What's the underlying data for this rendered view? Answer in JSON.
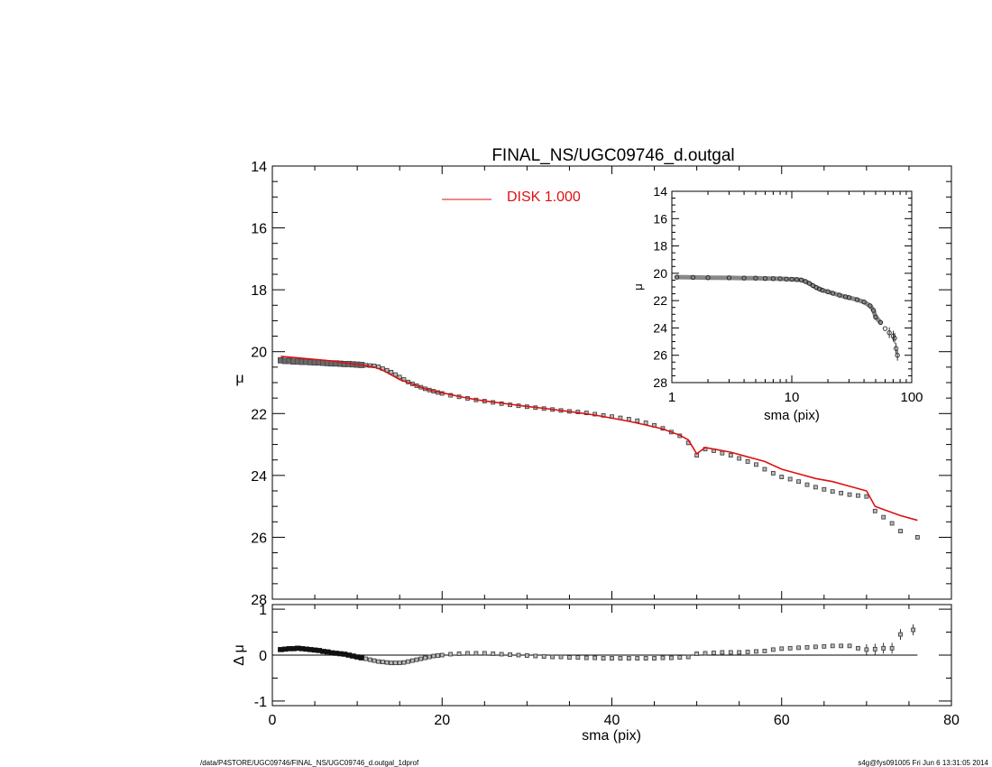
{
  "title": "FINAL_NS/UGC09746_d.outgal",
  "footer": {
    "left": "/data/P4STORE/UGC09746/FINAL_NS/UGC09746_d.outgal_1dprof",
    "right": "s4g@fys091005  Fri Jun  6 13:31:05 2014"
  },
  "colors": {
    "model": "#dd1111",
    "data": "#555555",
    "axis": "#000000"
  },
  "chart_data": [
    {
      "type": "scatter",
      "panel": "main",
      "title": "FINAL_NS/UGC09746_d.outgal",
      "xlabel": "",
      "ylabel": "μ",
      "xlim": [
        0,
        80
      ],
      "ylim": [
        28,
        14
      ],
      "y_inverted": true,
      "xticks": [
        "0",
        "20",
        "40",
        "60",
        "80"
      ],
      "yticks": [
        "14",
        "16",
        "18",
        "20",
        "22",
        "24",
        "26",
        "28"
      ],
      "legend": {
        "placement": "top-center",
        "entries": [
          {
            "label": "DISK  1.000",
            "color": "#dd1111"
          }
        ]
      },
      "series": [
        {
          "name": "DISK  1.000",
          "kind": "line",
          "color": "#dd1111",
          "x": [
            1,
            3,
            5,
            7,
            9,
            11,
            12,
            13,
            14,
            15,
            16,
            17,
            18,
            19,
            20,
            22,
            24,
            26,
            28,
            30,
            32,
            34,
            36,
            38,
            40,
            42,
            44,
            46,
            48,
            49,
            50,
            51,
            52,
            54,
            56,
            58,
            60,
            62,
            64,
            66,
            68,
            70,
            71,
            72,
            74,
            76
          ],
          "y": [
            20.15,
            20.2,
            20.25,
            20.3,
            20.38,
            20.45,
            20.5,
            20.6,
            20.75,
            20.9,
            21.0,
            21.1,
            21.2,
            21.27,
            21.33,
            21.45,
            21.55,
            21.63,
            21.7,
            21.77,
            21.83,
            21.9,
            21.97,
            22.05,
            22.15,
            22.25,
            22.37,
            22.5,
            22.7,
            22.85,
            23.3,
            23.1,
            23.15,
            23.25,
            23.4,
            23.55,
            23.8,
            23.95,
            24.1,
            24.2,
            24.35,
            24.5,
            25.0,
            25.1,
            25.3,
            25.45
          ]
        },
        {
          "name": "",
          "kind": "points",
          "color": "#555555",
          "x": [
            1,
            1.5,
            2,
            2.5,
            3,
            3.5,
            4,
            4.5,
            5,
            5.5,
            6,
            6.5,
            7,
            7.5,
            8,
            8.5,
            9,
            9.5,
            10,
            10.5,
            11,
            11.5,
            12,
            12.5,
            13,
            13.5,
            14,
            14.5,
            15,
            15.5,
            16,
            16.5,
            17,
            17.5,
            18,
            18.5,
            19,
            19.5,
            20,
            21,
            22,
            23,
            24,
            25,
            26,
            27,
            28,
            29,
            30,
            31,
            32,
            33,
            34,
            35,
            36,
            37,
            38,
            39,
            40,
            41,
            42,
            43,
            44,
            45,
            46,
            47,
            48,
            49,
            50,
            51,
            52,
            53,
            54,
            55,
            56,
            57,
            58,
            59,
            60,
            61,
            62,
            63,
            64,
            65,
            66,
            67,
            68,
            69,
            70,
            71,
            72,
            73,
            74,
            76
          ],
          "y": [
            20.28,
            20.3,
            20.3,
            20.32,
            20.32,
            20.33,
            20.33,
            20.34,
            20.35,
            20.35,
            20.36,
            20.37,
            20.38,
            20.38,
            20.39,
            20.4,
            20.4,
            20.41,
            20.42,
            20.43,
            20.44,
            20.45,
            20.46,
            20.49,
            20.55,
            20.6,
            20.66,
            20.74,
            20.82,
            20.9,
            20.98,
            21.04,
            21.1,
            21.15,
            21.2,
            21.24,
            21.28,
            21.32,
            21.35,
            21.41,
            21.46,
            21.51,
            21.56,
            21.6,
            21.64,
            21.68,
            21.72,
            21.75,
            21.78,
            21.81,
            21.84,
            21.87,
            21.9,
            21.93,
            21.95,
            21.98,
            22.02,
            22.06,
            22.1,
            22.14,
            22.18,
            22.23,
            22.3,
            22.38,
            22.48,
            22.6,
            22.72,
            22.95,
            23.35,
            23.15,
            23.2,
            23.28,
            23.35,
            23.45,
            23.55,
            23.65,
            23.8,
            23.93,
            24.05,
            24.12,
            24.2,
            24.3,
            24.38,
            24.45,
            24.52,
            24.57,
            24.62,
            24.65,
            24.68,
            25.15,
            25.35,
            25.55,
            25.8,
            26.0
          ]
        }
      ]
    },
    {
      "type": "scatter",
      "panel": "inset",
      "xlabel": "sma (pix)",
      "ylabel": "μ",
      "xscale": "log",
      "xlim": [
        1,
        100
      ],
      "ylim": [
        28,
        14
      ],
      "y_inverted": true,
      "xticks": [
        "1",
        "10",
        "100"
      ],
      "yticks": [
        "14",
        "16",
        "18",
        "20",
        "22",
        "24",
        "26",
        "28"
      ],
      "series": [
        {
          "name": "",
          "kind": "points",
          "color": "#333333",
          "x": [
            1.1,
            1.5,
            2,
            3,
            4,
            5,
            6,
            7,
            8,
            9,
            10,
            11,
            12,
            13,
            14,
            15,
            16,
            17,
            18,
            20,
            22,
            25,
            28,
            30,
            35,
            40,
            45,
            48,
            50,
            55,
            60,
            65,
            70,
            72,
            74,
            76
          ],
          "y": [
            20.28,
            20.3,
            20.32,
            20.33,
            20.35,
            20.36,
            20.38,
            20.39,
            20.4,
            20.42,
            20.44,
            20.46,
            20.49,
            20.6,
            20.74,
            20.9,
            21.04,
            21.15,
            21.24,
            21.35,
            21.46,
            21.6,
            21.72,
            21.78,
            21.93,
            22.1,
            22.38,
            22.72,
            23.2,
            23.6,
            24.05,
            24.35,
            24.6,
            24.75,
            25.5,
            26.0
          ]
        }
      ]
    },
    {
      "type": "scatter",
      "panel": "residual",
      "xlabel": "sma (pix)",
      "ylabel": "Δ μ",
      "xlim": [
        0,
        80
      ],
      "ylim": [
        -1.1,
        1.1
      ],
      "xticks": [
        "0",
        "20",
        "40",
        "60",
        "80"
      ],
      "yticks": [
        "1",
        "0",
        "-1"
      ],
      "zero_line": true,
      "series": [
        {
          "name": "",
          "kind": "points",
          "color": "#333333",
          "x": [
            1,
            1.5,
            2,
            2.5,
            3,
            3.5,
            4,
            4.5,
            5,
            5.5,
            6,
            6.5,
            7,
            7.5,
            8,
            8.5,
            9,
            9.5,
            10,
            10.5,
            11,
            11.5,
            12,
            12.5,
            13,
            13.5,
            14,
            14.5,
            15,
            15.5,
            16,
            16.5,
            17,
            17.5,
            18,
            18.5,
            19,
            19.5,
            20,
            21,
            22,
            23,
            24,
            25,
            26,
            27,
            28,
            29,
            30,
            31,
            32,
            33,
            34,
            35,
            36,
            37,
            38,
            39,
            40,
            41,
            42,
            43,
            44,
            45,
            46,
            47,
            48,
            49,
            50,
            51,
            52,
            53,
            54,
            55,
            56,
            57,
            58,
            59,
            60,
            61,
            62,
            63,
            64,
            65,
            66,
            67,
            68,
            69,
            70,
            71,
            72,
            73,
            74,
            75.5
          ],
          "y": [
            0.12,
            0.13,
            0.14,
            0.14,
            0.15,
            0.14,
            0.13,
            0.12,
            0.11,
            0.1,
            0.08,
            0.07,
            0.05,
            0.04,
            0.03,
            0.02,
            0.0,
            -0.02,
            -0.04,
            -0.06,
            -0.08,
            -0.1,
            -0.12,
            -0.14,
            -0.15,
            -0.16,
            -0.17,
            -0.17,
            -0.17,
            -0.16,
            -0.14,
            -0.12,
            -0.1,
            -0.08,
            -0.06,
            -0.04,
            -0.02,
            -0.01,
            0.0,
            0.02,
            0.03,
            0.04,
            0.04,
            0.04,
            0.03,
            0.02,
            0.01,
            0.0,
            -0.01,
            -0.02,
            -0.03,
            -0.04,
            -0.04,
            -0.05,
            -0.05,
            -0.06,
            -0.06,
            -0.07,
            -0.07,
            -0.07,
            -0.07,
            -0.07,
            -0.07,
            -0.07,
            -0.06,
            -0.06,
            -0.05,
            -0.04,
            0.03,
            0.04,
            0.05,
            0.06,
            0.06,
            0.06,
            0.07,
            0.08,
            0.09,
            0.12,
            0.14,
            0.15,
            0.16,
            0.17,
            0.18,
            0.19,
            0.2,
            0.2,
            0.2,
            0.15,
            0.12,
            0.13,
            0.15,
            0.15,
            0.45,
            0.55
          ]
        }
      ]
    }
  ]
}
